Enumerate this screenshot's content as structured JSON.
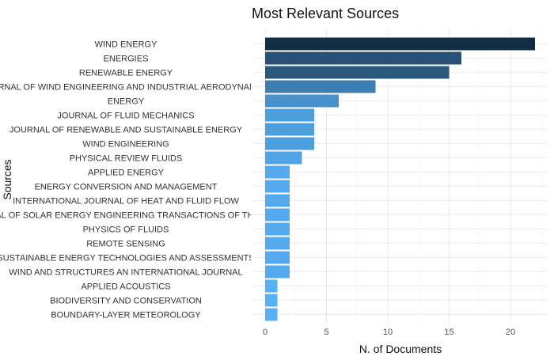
{
  "chart_data": {
    "type": "bar",
    "orientation": "horizontal",
    "title": "Most Relevant Sources",
    "xlabel": "N. of Documents",
    "ylabel": "Sources",
    "categories": [
      "WIND ENERGY",
      "ENERGIES",
      "RENEWABLE ENERGY",
      "JOURNAL OF WIND ENGINEERING AND INDUSTRIAL AERODYNAMICS",
      "ENERGY",
      "JOURNAL OF FLUID MECHANICS",
      "JOURNAL OF RENEWABLE AND SUSTAINABLE ENERGY",
      "WIND ENGINEERING",
      "PHYSICAL REVIEW FLUIDS",
      "APPLIED ENERGY",
      "ENERGY CONVERSION AND MANAGEMENT",
      "INTERNATIONAL JOURNAL OF HEAT AND FLUID FLOW",
      "JOURNAL OF SOLAR ENERGY ENGINEERING TRANSACTIONS OF THE ASME",
      "PHYSICS OF FLUIDS",
      "REMOTE SENSING",
      "SUSTAINABLE ENERGY TECHNOLOGIES AND ASSESSMENTS",
      "WIND AND STRUCTURES AN INTERNATIONAL JOURNAL",
      "APPLIED ACOUSTICS",
      "BIODIVERSITY AND CONSERVATION",
      "BOUNDARY-LAYER METEOROLOGY"
    ],
    "values": [
      22,
      16,
      15,
      9,
      6,
      4,
      4,
      4,
      3,
      2,
      2,
      2,
      2,
      2,
      2,
      2,
      2,
      1,
      1,
      1
    ],
    "xlim": [
      0,
      23.1
    ],
    "xticks": [
      0,
      5,
      10,
      15,
      20
    ],
    "grid": true,
    "legend": "none",
    "color_scale": {
      "low": "#56b1f7",
      "high": "#132b43"
    }
  }
}
